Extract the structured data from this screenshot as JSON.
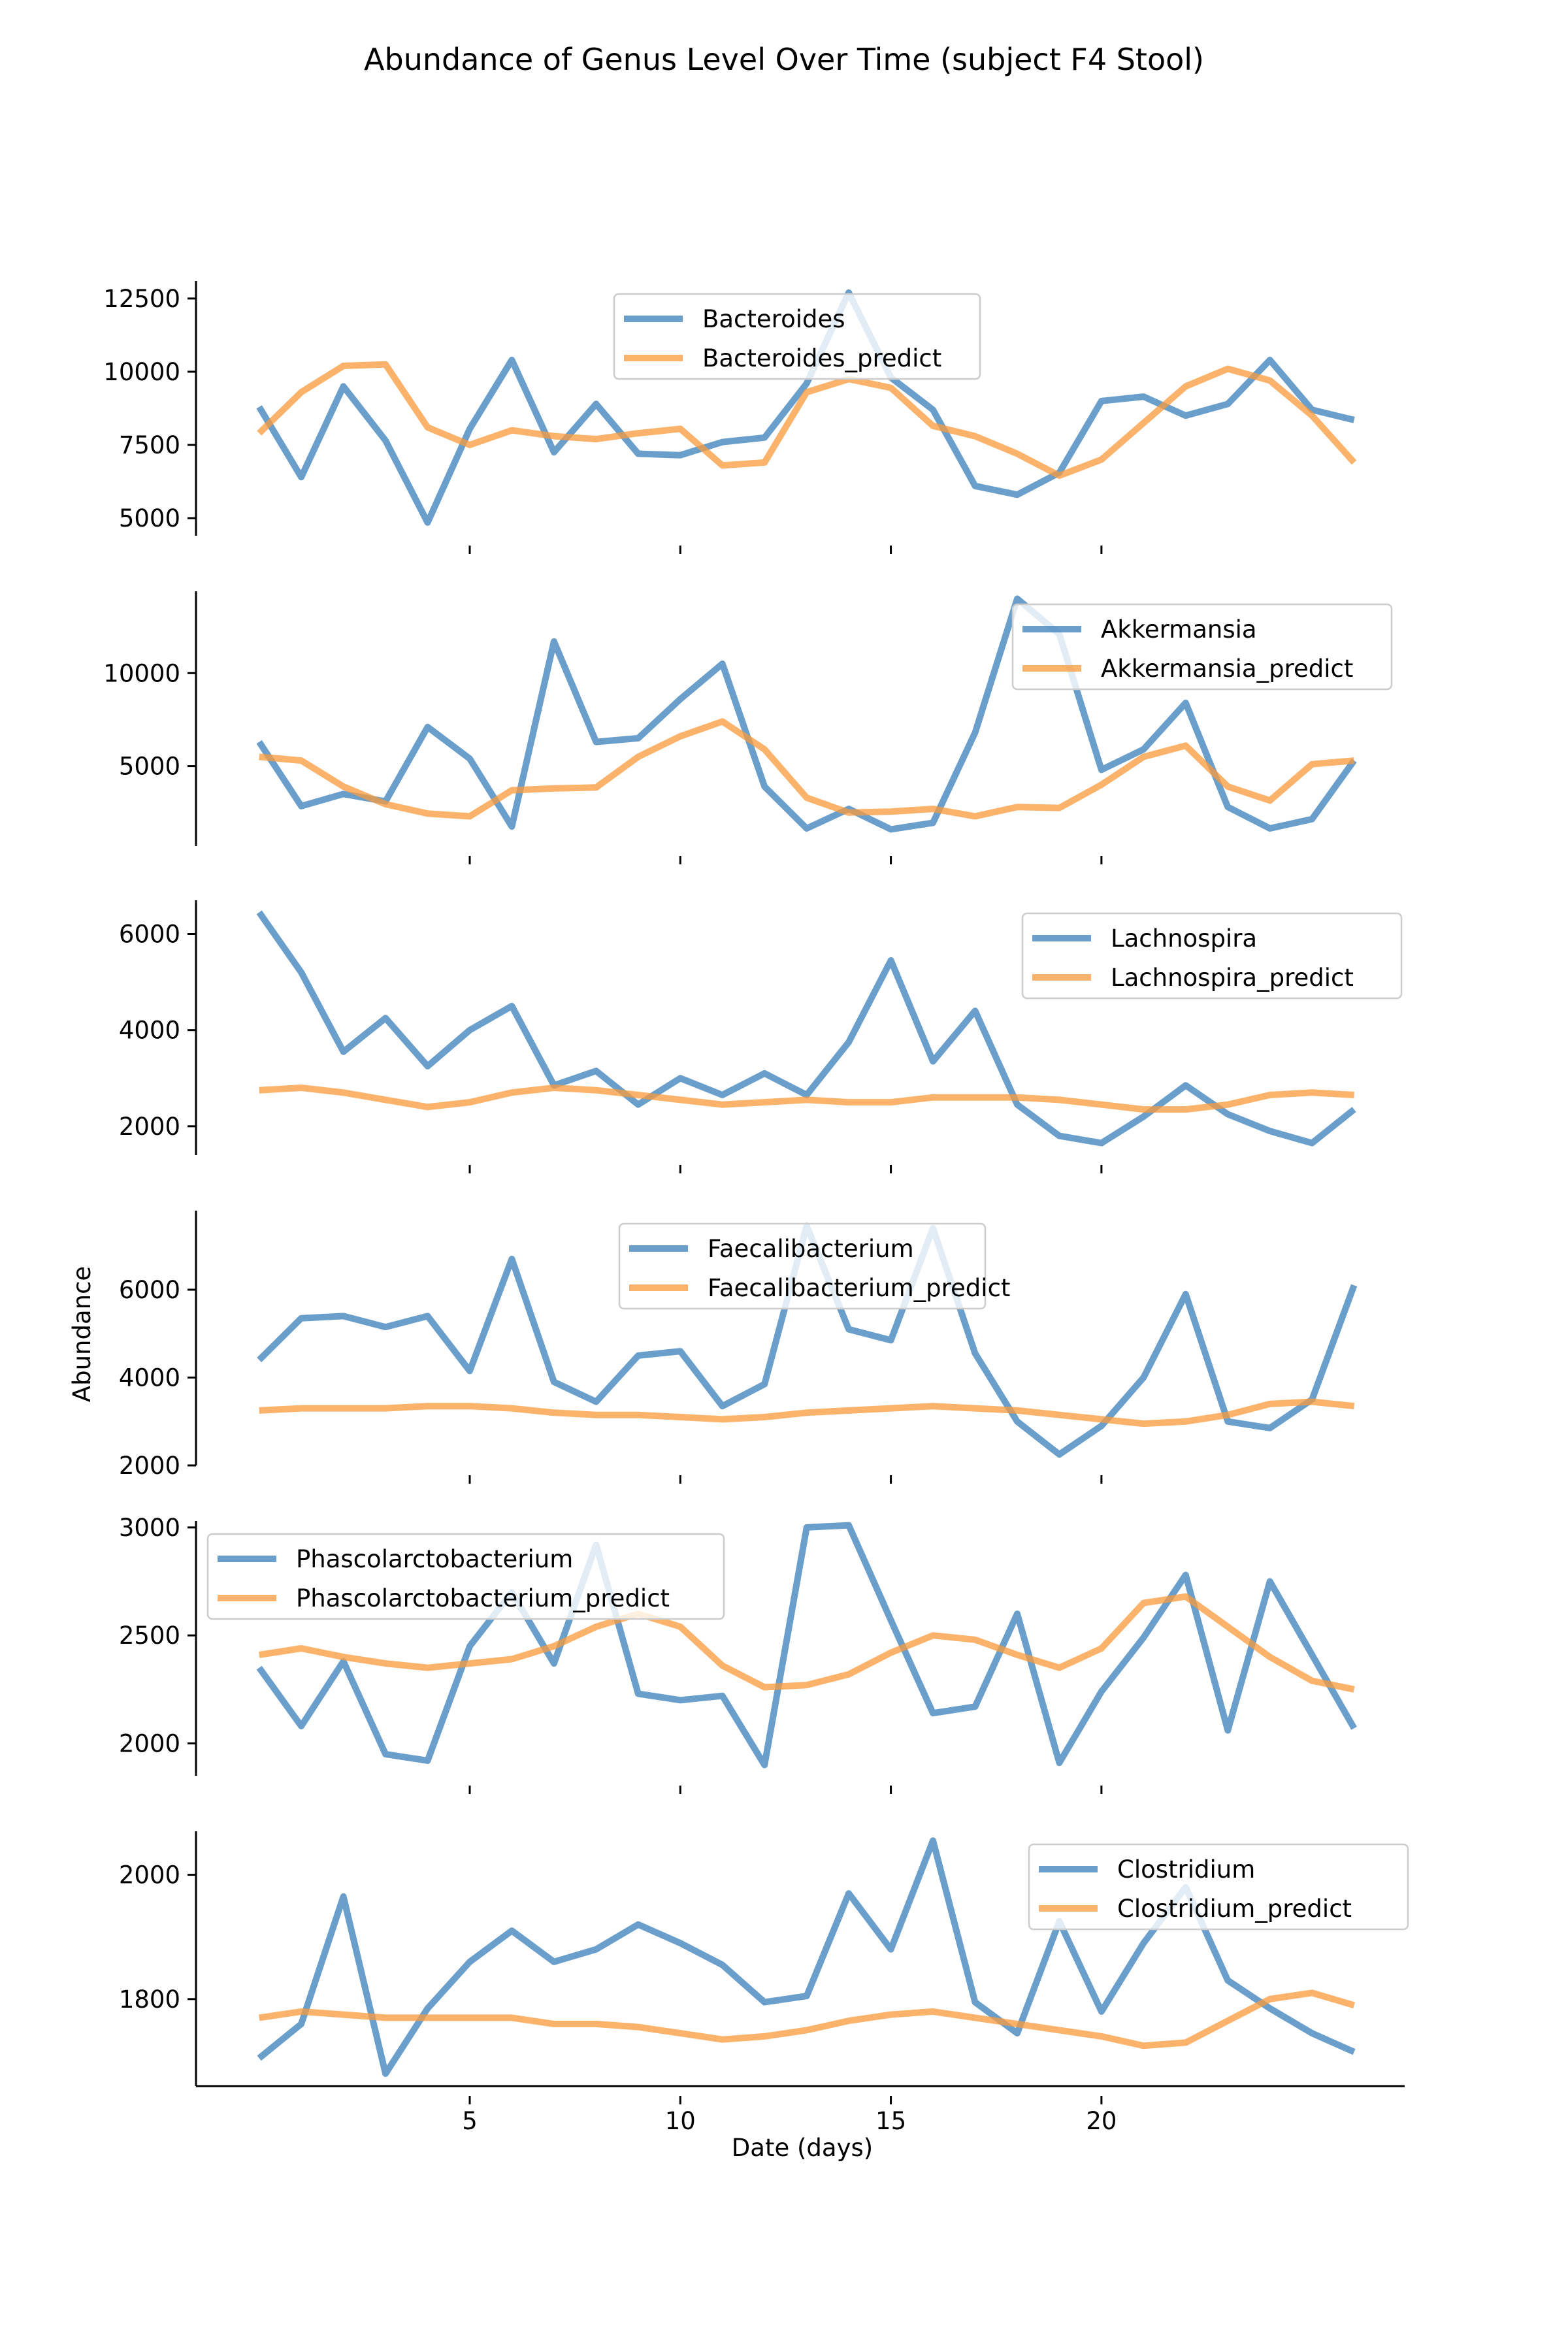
{
  "chart_data": {
    "type": "line",
    "title": "Abundance of Genus Level Over Time (subject F4 Stool)",
    "xlabel": "Date (days)",
    "ylabel": "Abundance",
    "grid": false,
    "x": [
      0,
      1,
      2,
      3,
      4,
      5,
      6,
      7,
      8,
      9,
      10,
      11,
      12,
      13,
      14,
      15,
      16,
      17,
      18,
      19,
      20,
      21,
      22,
      23,
      24,
      25,
      26
    ],
    "xlim": [
      -1.5,
      27.2
    ],
    "xticks": [
      5,
      10,
      15,
      20
    ],
    "colors": {
      "observed": "#3a7fba",
      "predict": "#f99a3a"
    },
    "panels": [
      {
        "ylim": [
          4400,
          13100
        ],
        "yticks": [
          5000,
          7500,
          10000,
          12500
        ],
        "tick_labels": [
          "5000",
          "7500",
          "10000",
          "12500"
        ],
        "legend_position": "top-center",
        "series": [
          {
            "name": "Bacteroides",
            "role": "observed",
            "values": [
              8800,
              6400,
              9500,
              7650,
              4850,
              8050,
              10400,
              7250,
              8900,
              7200,
              7150,
              7600,
              7750,
              9600,
              12700,
              9800,
              8700,
              6100,
              5800,
              6550,
              9000,
              9150,
              8500,
              8900,
              10400,
              8700,
              8350
            ]
          },
          {
            "name": "Bacteroides_predict",
            "role": "predict",
            "values": [
              7900,
              9300,
              10200,
              10250,
              8100,
              7500,
              8000,
              7800,
              7700,
              7900,
              8050,
              6800,
              6900,
              9300,
              9750,
              9450,
              8150,
              7800,
              7200,
              6450,
              7000,
              8250,
              9500,
              10100,
              9700,
              8500,
              6900
            ]
          }
        ]
      },
      {
        "ylim": [
          700,
          14400
        ],
        "yticks": [
          5000,
          10000
        ],
        "tick_labels": [
          "5000",
          "10000"
        ],
        "legend_position": "top-right",
        "series": [
          {
            "name": "Akkermansia",
            "role": "observed",
            "values": [
              6300,
              2850,
              3500,
              3100,
              7100,
              5400,
              1750,
              11700,
              6300,
              6500,
              8600,
              10500,
              3900,
              1650,
              2700,
              1600,
              1950,
              6800,
              14000,
              12100,
              4800,
              5900,
              8400,
              2800,
              1650,
              2150,
              5300
            ]
          },
          {
            "name": "Akkermansia_predict",
            "role": "predict",
            "values": [
              5500,
              5300,
              3900,
              2950,
              2450,
              2300,
              3700,
              3800,
              3850,
              5500,
              6600,
              7400,
              5900,
              3300,
              2500,
              2550,
              2700,
              2300,
              2800,
              2750,
              4000,
              5500,
              6100,
              3900,
              3150,
              5100,
              5300
            ]
          }
        ]
      },
      {
        "ylim": [
          1400,
          6700
        ],
        "yticks": [
          2000,
          4000,
          6000
        ],
        "tick_labels": [
          "2000",
          "4000",
          "6000"
        ],
        "legend_position": "top-right",
        "series": [
          {
            "name": "Lachnospira",
            "role": "observed",
            "values": [
              6450,
              5200,
              3550,
              4250,
              3250,
              4000,
              4500,
              2850,
              3150,
              2450,
              3000,
              2650,
              3100,
              2650,
              3750,
              5450,
              3350,
              4400,
              2450,
              1800,
              1650,
              2200,
              2850,
              2250,
              1900,
              1650,
              2350
            ]
          },
          {
            "name": "Lachnospira_predict",
            "role": "predict",
            "values": [
              2750,
              2800,
              2700,
              2550,
              2400,
              2500,
              2700,
              2800,
              2750,
              2650,
              2550,
              2450,
              2500,
              2550,
              2500,
              2500,
              2600,
              2600,
              2600,
              2550,
              2450,
              2350,
              2350,
              2450,
              2650,
              2700,
              2650
            ]
          }
        ]
      },
      {
        "ylim": [
          2000,
          7800
        ],
        "yticks": [
          2000,
          4000,
          6000
        ],
        "tick_labels": [
          "2000",
          "4000",
          "6000"
        ],
        "legend_position": "top-center",
        "series": [
          {
            "name": "Faecalibacterium",
            "role": "observed",
            "values": [
              4400,
              5350,
              5400,
              5150,
              5400,
              4150,
              6700,
              3900,
              3450,
              4500,
              4600,
              3350,
              3850,
              7450,
              5100,
              4850,
              7400,
              4550,
              3000,
              2250,
              2900,
              4000,
              5900,
              3000,
              2850,
              3500,
              6100
            ]
          },
          {
            "name": "Faecalibacterium_predict",
            "role": "predict",
            "values": [
              3250,
              3300,
              3300,
              3300,
              3350,
              3350,
              3300,
              3200,
              3150,
              3150,
              3100,
              3050,
              3100,
              3200,
              3250,
              3300,
              3350,
              3300,
              3250,
              3150,
              3050,
              2950,
              3000,
              3150,
              3400,
              3450,
              3350
            ]
          }
        ]
      },
      {
        "ylim": [
          1850,
          3030
        ],
        "yticks": [
          2000,
          2500,
          3000
        ],
        "tick_labels": [
          "2000",
          "2500",
          "3000"
        ],
        "legend_position": "top-left",
        "series": [
          {
            "name": "Phascolarctobacterium",
            "role": "observed",
            "values": [
              2350,
              2080,
              2380,
              1950,
              1920,
              2450,
              2700,
              2370,
              2920,
              2230,
              2200,
              2220,
              1900,
              3000,
              3010,
              2570,
              2140,
              2170,
              2600,
              1910,
              2240,
              2490,
              2780,
              2060,
              2750,
              2410,
              2070
            ]
          },
          {
            "name": "Phascolarctobacterium_predict",
            "role": "predict",
            "values": [
              2410,
              2440,
              2400,
              2370,
              2350,
              2370,
              2390,
              2450,
              2540,
              2600,
              2540,
              2360,
              2260,
              2270,
              2320,
              2420,
              2500,
              2480,
              2410,
              2350,
              2440,
              2650,
              2680,
              2540,
              2400,
              2290,
              2250
            ]
          }
        ]
      },
      {
        "ylim": [
          1660,
          2070
        ],
        "yticks": [
          1800,
          2000
        ],
        "tick_labels": [
          "1800",
          "2000"
        ],
        "legend_position": "top-right",
        "series": [
          {
            "name": "Clostridium",
            "role": "observed",
            "values": [
              1705,
              1760,
              1965,
              1680,
              1785,
              1860,
              1910,
              1860,
              1880,
              1920,
              1890,
              1855,
              1795,
              1805,
              1970,
              1880,
              2055,
              1795,
              1745,
              1925,
              1780,
              1890,
              1980,
              1830,
              1785,
              1745,
              1715
            ]
          },
          {
            "name": "Clostridium_predict",
            "role": "predict",
            "values": [
              1770,
              1780,
              1775,
              1770,
              1770,
              1770,
              1770,
              1760,
              1760,
              1755,
              1745,
              1735,
              1740,
              1750,
              1765,
              1775,
              1780,
              1770,
              1760,
              1750,
              1740,
              1725,
              1730,
              1765,
              1800,
              1810,
              1790
            ]
          }
        ]
      }
    ]
  }
}
